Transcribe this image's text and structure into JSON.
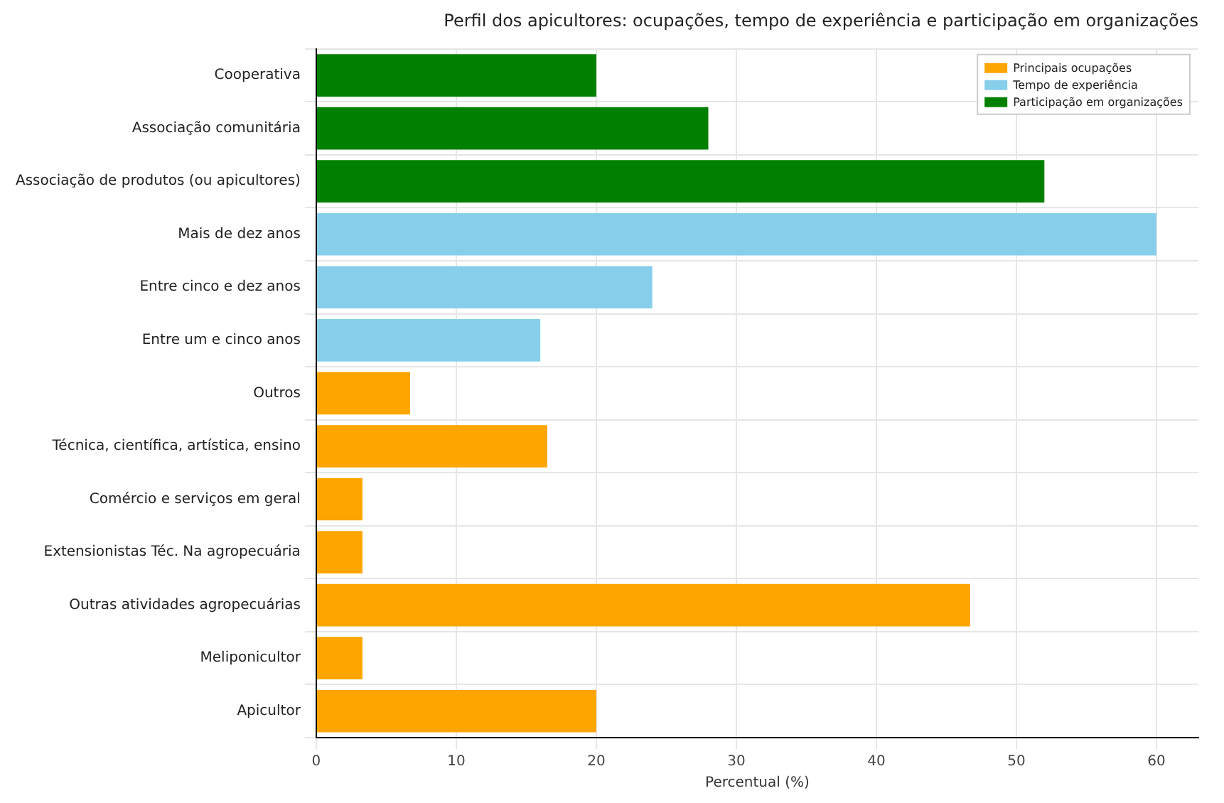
{
  "chart_data": {
    "type": "bar",
    "orientation": "horizontal",
    "title": "Perfil dos apicultores: ocupações, tempo de experiência e participação em organizações",
    "xlabel": "Percentual (%)",
    "categories": [
      "Cooperativa",
      "Associação comunitária",
      "Associação de produtos (ou apicultores)",
      "Mais de dez anos",
      "Entre cinco e dez anos",
      "Entre um e cinco anos",
      "Outros",
      "Técnica, científica, artística, ensino",
      "Comércio e serviços em geral",
      "Extensionistas Téc. Na agropecuária",
      "Outras atividades agropecuárias",
      "Meliponicultor",
      "Apicultor"
    ],
    "series": [
      {
        "name": "Principais ocupações",
        "color": "#ffa500",
        "values": [
          null,
          null,
          null,
          null,
          null,
          null,
          6.7,
          16.5,
          3.3,
          3.3,
          46.7,
          3.3,
          20
        ]
      },
      {
        "name": "Tempo de experiência",
        "color": "#87ceeb",
        "values": [
          null,
          null,
          null,
          60,
          24,
          16,
          null,
          null,
          null,
          null,
          null,
          null,
          null
        ]
      },
      {
        "name": "Participação em organizações",
        "color": "#008000",
        "values": [
          20,
          28,
          52,
          null,
          null,
          null,
          null,
          null,
          null,
          null,
          null,
          null,
          null
        ]
      }
    ],
    "xlim": [
      0,
      63
    ],
    "xticks": [
      0,
      10,
      20,
      30,
      40,
      50,
      60
    ],
    "grid": true,
    "legend": "top right"
  }
}
